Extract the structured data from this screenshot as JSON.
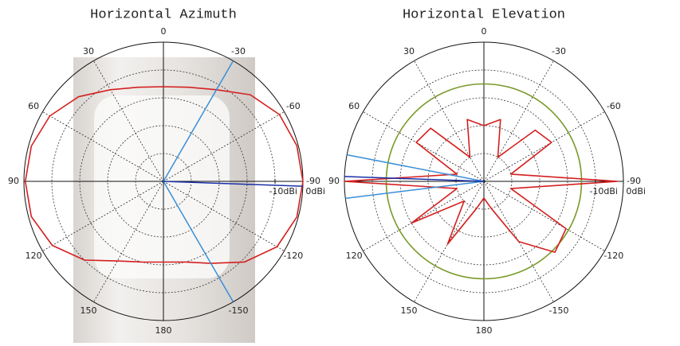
{
  "chart_data": [
    {
      "type": "polar",
      "title": "Horizontal Azimuth",
      "angles": [
        -165,
        -150,
        -135,
        -120,
        -105,
        -90,
        -75,
        -60,
        -45,
        -30,
        -15,
        0,
        15,
        30,
        45,
        60,
        75,
        90,
        105,
        120,
        135,
        150,
        165,
        180
      ],
      "series": [
        {
          "color": "#d42020",
          "values": [
            -20,
            -16,
            -9,
            -3,
            -0.5,
            0,
            -0.5,
            -2,
            -6,
            -12,
            -15,
            -16,
            -15,
            -12,
            -7,
            -3,
            -1,
            -0.5,
            -1,
            -4,
            -10,
            -17,
            -20,
            -21
          ]
        }
      ],
      "rlim": [
        -50,
        0
      ],
      "rgrid": [
        -40,
        -30,
        -20,
        -10
      ],
      "rticks": [
        {
          "value": -10,
          "label": "-10dBi"
        },
        {
          "value": 0,
          "label": "0dBi"
        }
      ],
      "angle_ticks": [
        0,
        -30,
        -60,
        -90,
        -120,
        -150,
        180,
        150,
        120,
        90,
        60,
        30
      ],
      "markers": [
        {
          "angle": -30,
          "color": "#3a8fd8"
        },
        {
          "angle": -150,
          "color": "#3a8fd8"
        },
        {
          "angle": -92,
          "color": "#1a2fa8"
        }
      ]
    },
    {
      "type": "polar",
      "title": "Horizontal Elevation",
      "angles": [
        -165,
        -150,
        -135,
        -120,
        -105,
        -90,
        -75,
        -60,
        -45,
        -30,
        -15,
        0,
        15,
        30,
        45,
        60,
        75,
        90,
        105,
        120,
        135,
        150,
        165,
        180
      ],
      "series": [
        {
          "color": "#d42020",
          "values": [
            -40,
            -25,
            -14,
            -16,
            -40,
            -2,
            -40,
            -22,
            -24,
            -40,
            -27,
            -30,
            -27,
            -40,
            -23,
            -22,
            -40,
            0,
            -40,
            -20,
            -40,
            -24,
            -40,
            -44
          ]
        }
      ],
      "rlim": [
        -50,
        0
      ],
      "rgrid": [
        -40,
        -30,
        -20,
        -10
      ],
      "rticks": [
        {
          "value": -10,
          "label": "-10dBi"
        },
        {
          "value": 0,
          "label": "0dBi"
        }
      ],
      "angle_ticks": [
        0,
        -30,
        -60,
        -90,
        -120,
        -150,
        180,
        150,
        120,
        90,
        60,
        30
      ],
      "reference_level": -15,
      "reference_color": "#7a9a2a",
      "markers": [
        {
          "angle": 79,
          "color": "#3a8fd8"
        },
        {
          "angle": 97,
          "color": "#3a8fd8"
        },
        {
          "angle": 88,
          "color": "#1a2fa8"
        }
      ]
    }
  ]
}
